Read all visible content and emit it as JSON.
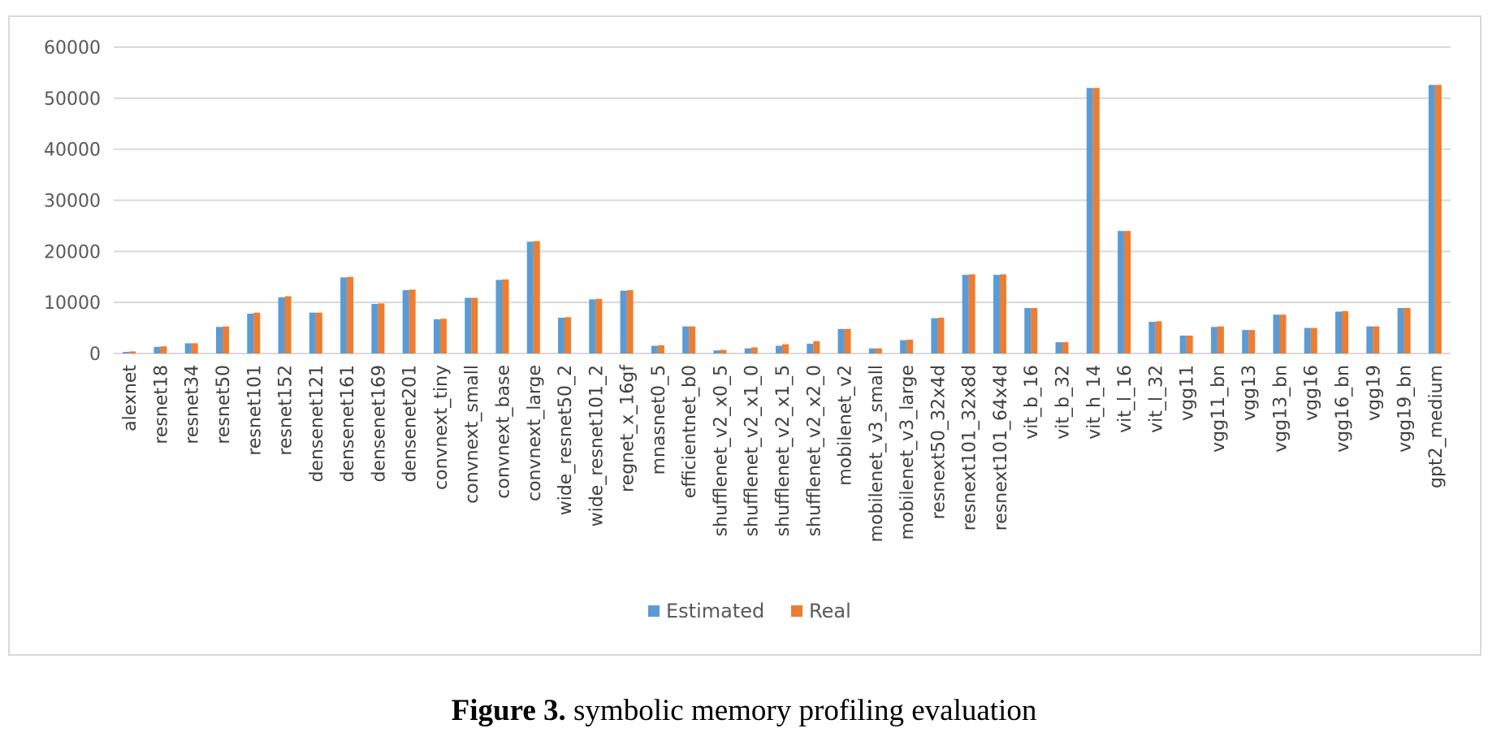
{
  "chart_data": {
    "type": "bar",
    "categories": [
      "alexnet",
      "resnet18",
      "resnet34",
      "resnet50",
      "resnet101",
      "resnet152",
      "densenet121",
      "densenet161",
      "densenet169",
      "densenet201",
      "convnext_tiny",
      "convnext_small",
      "convnext_base",
      "convnext_large",
      "wide_resnet50_2",
      "wide_resnet101_2",
      "regnet_x_16gf",
      "mnasnet0_5",
      "efficientnet_b0",
      "shufflenet_v2_x0_5",
      "shufflenet_v2_x1_0",
      "shufflenet_v2_x1_5",
      "shufflenet_v2_x2_0",
      "mobilenet_v2",
      "mobilenet_v3_small",
      "mobilenet_v3_large",
      "resnext50_32x4d",
      "resnext101_32x8d",
      "resnext101_64x4d",
      "vit_b_16",
      "vit_b_32",
      "vit_h_14",
      "vit_l_16",
      "vit_l_32",
      "vgg11",
      "vgg11_bn",
      "vgg13",
      "vgg13_bn",
      "vgg16",
      "vgg16_bn",
      "vgg19",
      "vgg19_bn",
      "gpt2_medium"
    ],
    "series": [
      {
        "name": "Estimated",
        "color": "#5b9bd5",
        "values": [
          300,
          1300,
          2000,
          5200,
          7800,
          11000,
          8000,
          14900,
          9700,
          12400,
          6700,
          10900,
          14400,
          21900,
          7000,
          10600,
          12300,
          1500,
          5300,
          600,
          1000,
          1500,
          1900,
          4800,
          1000,
          2600,
          6900,
          15400,
          15400,
          8900,
          2200,
          52000,
          24000,
          6200,
          3500,
          5200,
          4600,
          7600,
          5000,
          8200,
          5300,
          8900,
          52600
        ]
      },
      {
        "name": "Real",
        "color": "#ed7d31",
        "values": [
          400,
          1400,
          2000,
          5300,
          8000,
          11200,
          8000,
          15000,
          9800,
          12500,
          6800,
          10900,
          14500,
          22000,
          7100,
          10700,
          12400,
          1600,
          5300,
          700,
          1200,
          1800,
          2400,
          4800,
          1000,
          2700,
          7000,
          15500,
          15500,
          8900,
          2200,
          52000,
          24000,
          6300,
          3500,
          5300,
          4600,
          7600,
          5000,
          8300,
          5300,
          8900,
          52600
        ]
      }
    ],
    "ylim": [
      0,
      60000
    ],
    "yticks": [
      0,
      10000,
      20000,
      30000,
      40000,
      50000,
      60000
    ],
    "grid": true,
    "legend": "bottom-center"
  },
  "caption": {
    "label": "Figure 3.",
    "text": " symbolic memory profiling evaluation"
  }
}
